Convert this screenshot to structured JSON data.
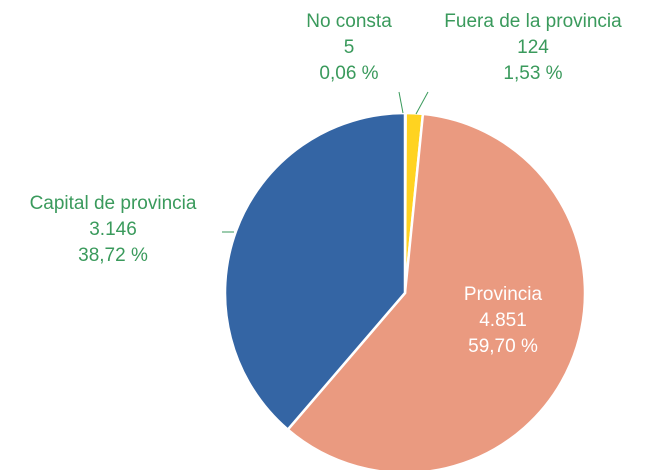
{
  "chart_data": {
    "type": "pie",
    "categories": [
      "No consta",
      "Fuera de la provincia",
      "Provincia",
      "Capital de provincia"
    ],
    "values": [
      5,
      124,
      4851,
      3146
    ],
    "value_labels": [
      "5",
      "124",
      "4.851",
      "3.146"
    ],
    "percentages": [
      0.06,
      1.53,
      59.7,
      38.72
    ],
    "percentage_labels": [
      "0,06 %",
      "1,53 %",
      "59,70 %",
      "38,72 %"
    ],
    "colors": [
      "#a5a5a5",
      "#ffd320",
      "#ea9a80",
      "#3465a4"
    ],
    "label_color": "#3a9a5c"
  }
}
